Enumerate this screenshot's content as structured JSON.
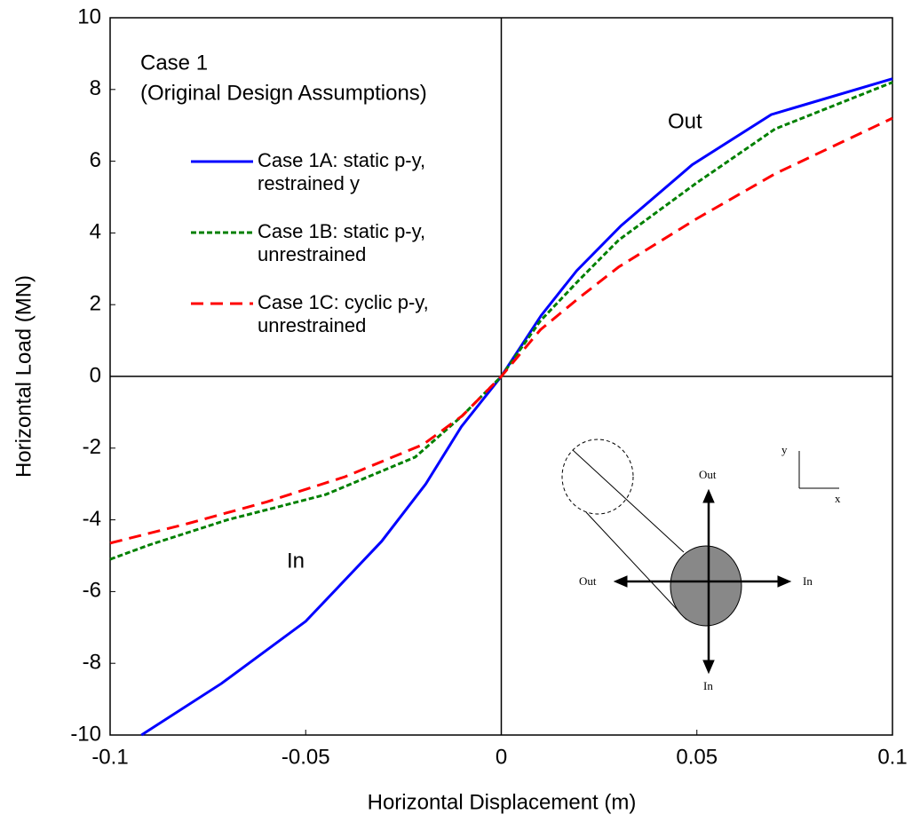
{
  "chart_data": {
    "type": "line",
    "xlabel": "Horizontal Displacement (m)",
    "ylabel": "Horizontal  Load (MN)",
    "xlim": [
      -0.1,
      0.1
    ],
    "xticks": [
      -0.1,
      -0.05,
      0,
      0.05,
      0.1
    ],
    "ylim": [
      -10,
      10
    ],
    "yticks": [
      -10,
      -8,
      -6,
      -4,
      -2,
      0,
      2,
      4,
      6,
      8,
      10
    ],
    "annotations": [
      "Case 1",
      "(Original Design Assumptions)",
      "Out",
      "In"
    ],
    "inset_labels": [
      "Out",
      "In",
      "Out",
      "In",
      "y",
      "x"
    ],
    "series": [
      {
        "name": "Case 1A: static p-y, restrained y",
        "color": "#0000ff",
        "dash": "solid",
        "x": [
          -0.092,
          -0.0715,
          -0.05,
          -0.0306,
          -0.0193,
          -0.0102,
          0,
          0.0102,
          0.0193,
          0.0306,
          0.0488,
          0.069,
          0.1
        ],
        "values": [
          -10,
          -8.56,
          -6.83,
          -4.6,
          -3.0,
          -1.4,
          0,
          1.7,
          2.95,
          4.2,
          5.9,
          7.3,
          8.3
        ]
      },
      {
        "name": "Case 1B: static p-y, unrestrained",
        "color": "#008000",
        "dash": "short",
        "x": [
          -0.1,
          -0.09,
          -0.07,
          -0.045,
          -0.022,
          -0.01,
          0,
          0.01,
          0.02,
          0.03,
          0.05,
          0.07,
          0.1
        ],
        "values": [
          -5.1,
          -4.7,
          -4.0,
          -3.3,
          -2.25,
          -1.1,
          0,
          1.55,
          2.7,
          3.8,
          5.4,
          6.9,
          8.2
        ]
      },
      {
        "name": "Case 1C: cyclic p-y, unrestrained",
        "color": "#ff0000",
        "dash": "long",
        "x": [
          -0.1,
          -0.08,
          -0.06,
          -0.04,
          -0.02,
          -0.01,
          0,
          0.01,
          0.02,
          0.03,
          0.05,
          0.07,
          0.1
        ],
        "values": [
          -4.65,
          -4.1,
          -3.5,
          -2.8,
          -1.9,
          -1.1,
          0,
          1.3,
          2.2,
          3.05,
          4.4,
          5.65,
          7.2
        ]
      }
    ]
  }
}
